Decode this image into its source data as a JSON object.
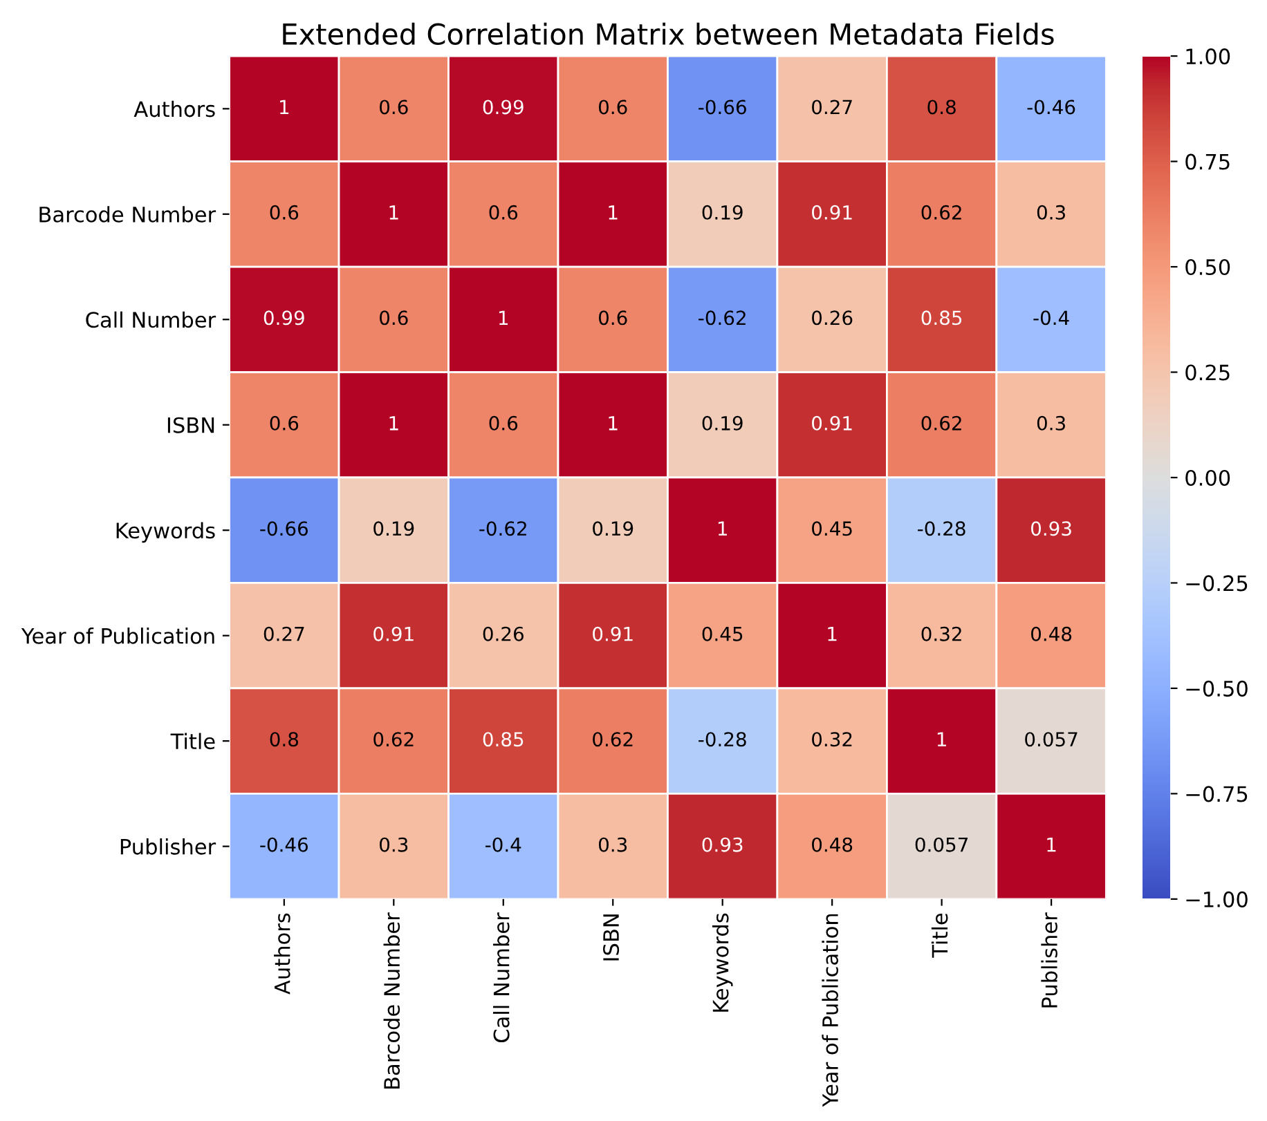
{
  "chart_data": {
    "type": "heatmap",
    "title": "Extended Correlation Matrix between Metadata Fields",
    "categories": [
      "Authors",
      "Barcode Number",
      "Call Number",
      "ISBN",
      "Keywords",
      "Year of Publication",
      "Title",
      "Publisher"
    ],
    "y_categories": [
      "Authors",
      "Barcode Number",
      "Call Number",
      "ISBN",
      "Keywords",
      "Year of Publication",
      "Title",
      "Publisher"
    ],
    "cells": [
      [
        1,
        0.6,
        0.99,
        0.6,
        -0.66,
        0.27,
        0.8,
        -0.46
      ],
      [
        0.6,
        1,
        0.6,
        1,
        0.19,
        0.91,
        0.62,
        0.3
      ],
      [
        0.99,
        0.6,
        1,
        0.6,
        -0.62,
        0.26,
        0.85,
        -0.4
      ],
      [
        0.6,
        1,
        0.6,
        1,
        0.19,
        0.91,
        0.62,
        0.3
      ],
      [
        -0.66,
        0.19,
        -0.62,
        0.19,
        1,
        0.45,
        -0.28,
        0.93
      ],
      [
        0.27,
        0.91,
        0.26,
        0.91,
        0.45,
        1,
        0.32,
        0.48
      ],
      [
        0.8,
        0.62,
        0.85,
        0.62,
        -0.28,
        0.32,
        1,
        0.057
      ],
      [
        -0.46,
        0.3,
        -0.4,
        0.3,
        0.93,
        0.48,
        0.057,
        1
      ]
    ],
    "data_labels": true,
    "clim": [
      -1,
      1
    ],
    "cticks": [
      {
        "value": -1,
        "label": "−1.00"
      },
      {
        "value": -0.75,
        "label": "−0.75"
      },
      {
        "value": -0.5,
        "label": "−0.50"
      },
      {
        "value": -0.25,
        "label": "−0.25"
      },
      {
        "value": 0,
        "label": "0.00"
      },
      {
        "value": 0.25,
        "label": "0.25"
      },
      {
        "value": 0.5,
        "label": "0.50"
      },
      {
        "value": 0.75,
        "label": "0.75"
      },
      {
        "value": 1,
        "label": "1.00"
      }
    ]
  }
}
